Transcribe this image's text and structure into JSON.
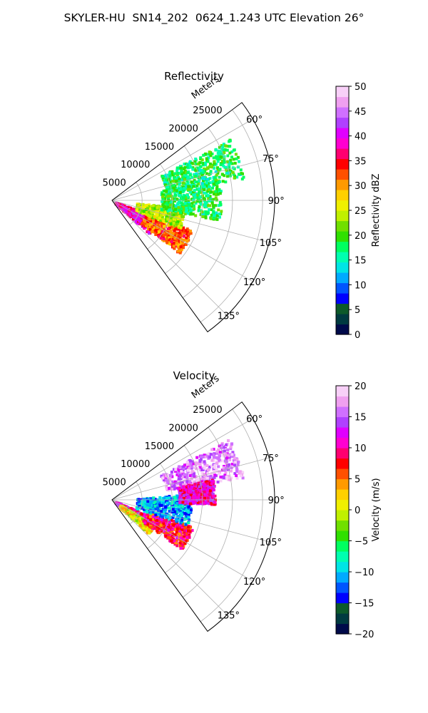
{
  "figure_title": "SKYLER-HU  SN14_202  0624_1.243 UTC Elevation 26°",
  "chart_data": [
    {
      "type": "polar-sector",
      "title": "Reflectivity",
      "radial_label": "Meters",
      "r_ticks": [
        "5000",
        "10000",
        "15000",
        "20000",
        "25000"
      ],
      "r_tick_values": [
        5000,
        10000,
        15000,
        20000,
        25000
      ],
      "r_max": 27000,
      "theta_ticks": [
        "60°",
        "75°",
        "90°",
        "105°",
        "120°",
        "135°"
      ],
      "theta_tick_values": [
        60,
        75,
        90,
        105,
        120,
        135
      ],
      "theta_range_deg": [
        53,
        144
      ],
      "grid": true,
      "colorbar": {
        "label": "Reflectivity dBZ",
        "ticks": [
          "0",
          "5",
          "10",
          "15",
          "20",
          "25",
          "30",
          "35",
          "40",
          "45",
          "50"
        ],
        "range": [
          0,
          50
        ],
        "colors": [
          "#000a4a",
          "#003a40",
          "#0d5a2a",
          "#0000ff",
          "#0055ff",
          "#00aaff",
          "#00e5e5",
          "#00ffb0",
          "#00ff60",
          "#30e000",
          "#70e000",
          "#c0f000",
          "#f0f000",
          "#ffd000",
          "#ff9a00",
          "#ff5000",
          "#ff0000",
          "#ff0070",
          "#ff00d0",
          "#e000ff",
          "#b040ff",
          "#d070ff",
          "#f0a0f0",
          "#f8d0f8"
        ]
      },
      "data_regions": [
        {
          "desc": "western echo, strongest",
          "level": 38,
          "r": [
            500,
            8000
          ],
          "theta": [
            110,
            132
          ]
        },
        {
          "desc": "western echo core",
          "level": 40,
          "r": [
            1500,
            6000
          ],
          "theta": [
            117,
            127
          ]
        },
        {
          "desc": "southern echo",
          "level": 32,
          "r": [
            6000,
            14000
          ],
          "theta": [
            110,
            128
          ]
        },
        {
          "desc": "central band",
          "level": 24,
          "r": [
            4000,
            12000
          ],
          "theta": [
            95,
            112
          ]
        },
        {
          "desc": "northern arm",
          "level": 18,
          "r": [
            9000,
            22000
          ],
          "theta": [
            62,
            80
          ]
        },
        {
          "desc": "mid band",
          "level": 18,
          "r": [
            8000,
            18000
          ],
          "theta": [
            78,
            100
          ]
        }
      ]
    },
    {
      "type": "polar-sector",
      "title": "Velocity",
      "radial_label": "Meters",
      "r_ticks": [
        "5000",
        "10000",
        "15000",
        "20000",
        "25000"
      ],
      "r_tick_values": [
        5000,
        10000,
        15000,
        20000,
        25000
      ],
      "r_max": 27000,
      "theta_ticks": [
        "60°",
        "75°",
        "90°",
        "105°",
        "120°",
        "135°"
      ],
      "theta_tick_values": [
        60,
        75,
        90,
        105,
        120,
        135
      ],
      "theta_range_deg": [
        53,
        144
      ],
      "grid": true,
      "colorbar": {
        "label": "Velocity (m/s)",
        "ticks": [
          "−20",
          "−15",
          "−10",
          "−5",
          "0",
          "5",
          "10",
          "15",
          "20"
        ],
        "range": [
          -20,
          20
        ],
        "colors": [
          "#000a4a",
          "#003a40",
          "#0d5a2a",
          "#0000ff",
          "#0055ff",
          "#00aaff",
          "#00e5e5",
          "#00ffb0",
          "#00ff60",
          "#30e000",
          "#70e000",
          "#c0f000",
          "#f0f000",
          "#ffd000",
          "#ff9a00",
          "#ff5000",
          "#ff0000",
          "#ff0070",
          "#ff00d0",
          "#e000ff",
          "#b040ff",
          "#d070ff",
          "#f0a0f0",
          "#f8d0f8"
        ]
      },
      "data_regions": [
        {
          "desc": "western inbound/outbound couplet, outbound",
          "level": 11,
          "r": [
            500,
            8000
          ],
          "theta": [
            112,
            130
          ]
        },
        {
          "desc": "western low speed",
          "level": 1,
          "r": [
            1500,
            8000
          ],
          "theta": [
            120,
            133
          ]
        },
        {
          "desc": "southern outbound",
          "level": 8,
          "r": [
            6000,
            14000
          ],
          "theta": [
            108,
            125
          ]
        },
        {
          "desc": "central inbound",
          "level": -11,
          "r": [
            4000,
            13000
          ],
          "theta": [
            85,
            108
          ]
        },
        {
          "desc": "northern arm outbound",
          "level": 16,
          "r": [
            9000,
            22000
          ],
          "theta": [
            62,
            80
          ]
        },
        {
          "desc": "northern arm core",
          "level": 11,
          "r": [
            11000,
            17000
          ],
          "theta": [
            78,
            92
          ]
        }
      ]
    }
  ]
}
